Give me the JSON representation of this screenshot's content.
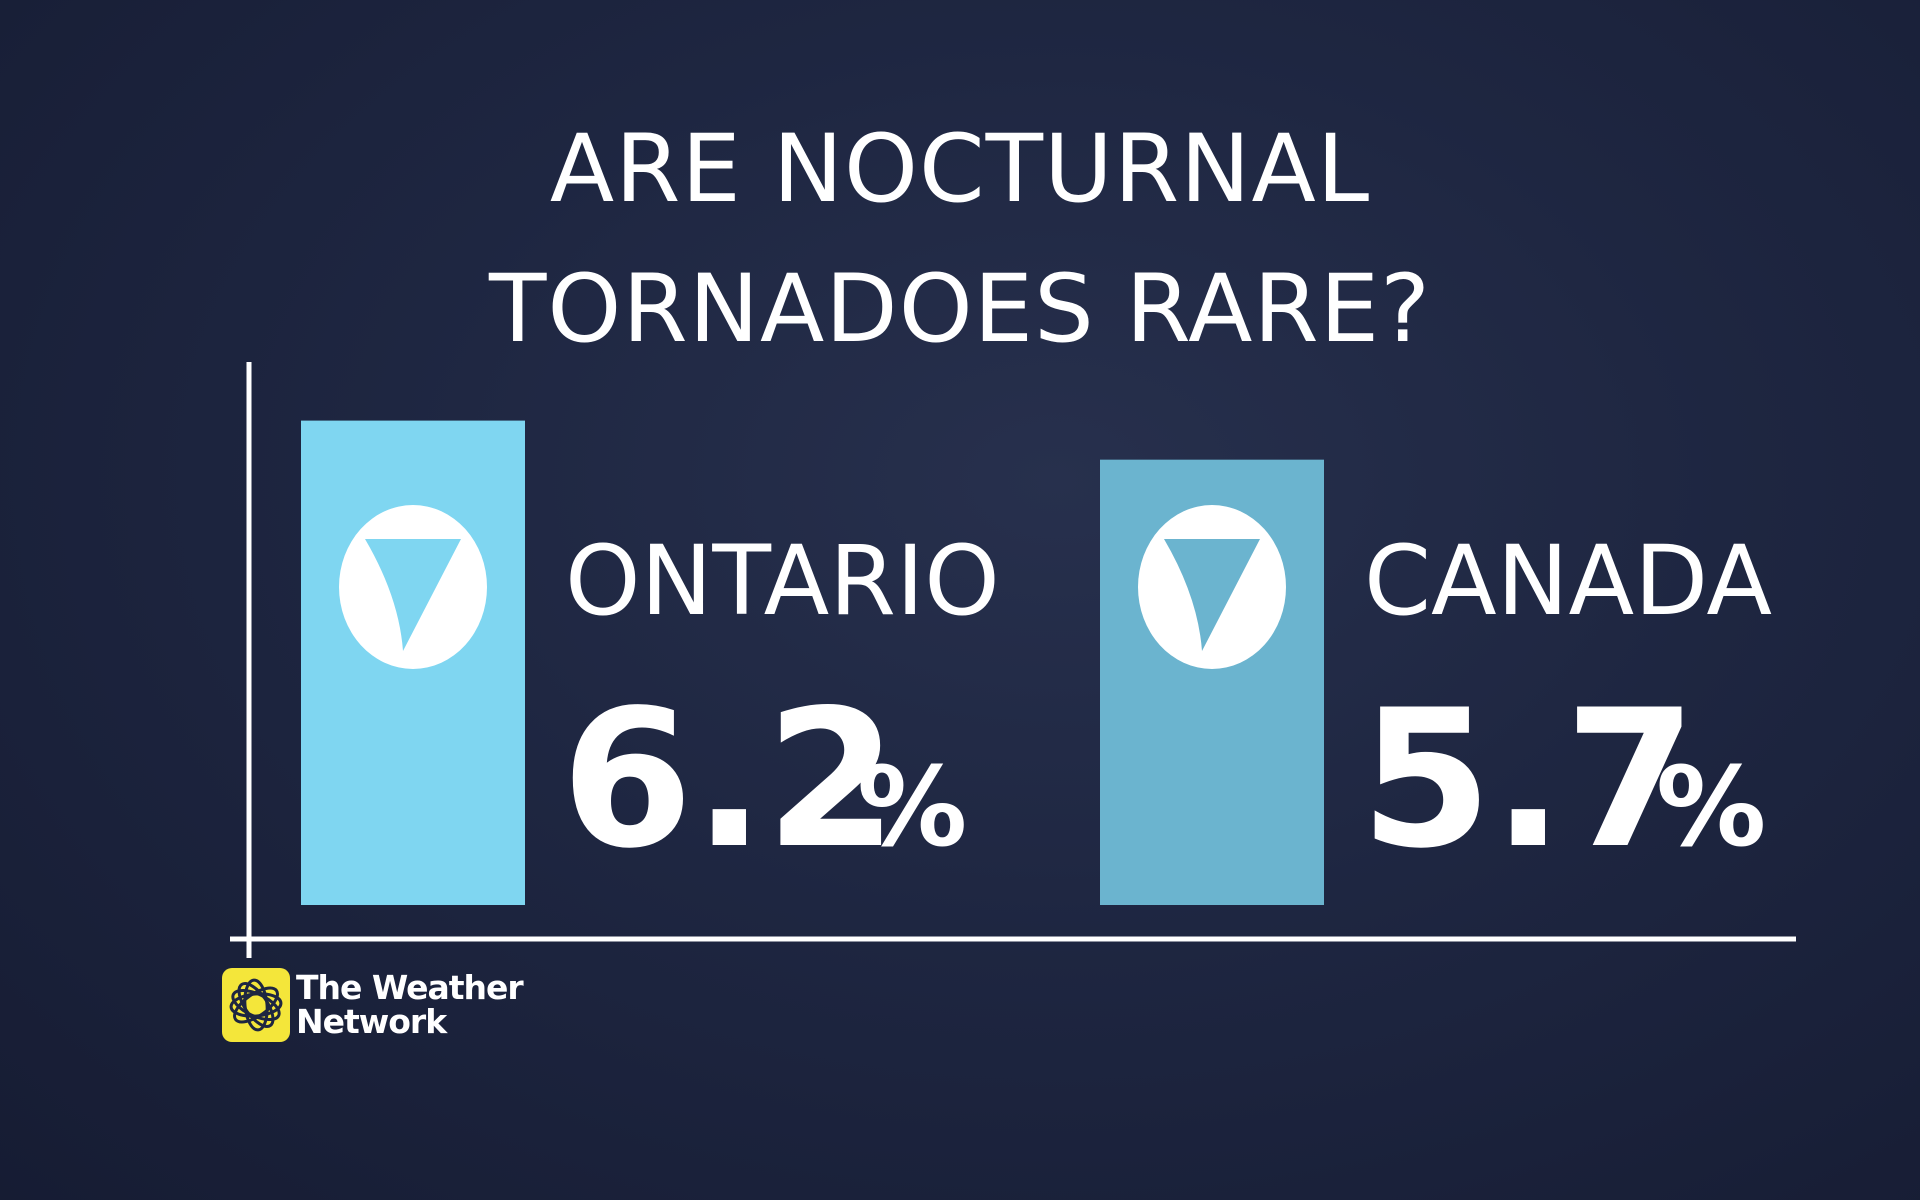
{
  "chart_data": {
    "type": "bar",
    "title_lines": [
      "ARE NOCTURNAL",
      "TORNADOES RARE?"
    ],
    "categories": [
      "ONTARIO",
      "CANADA"
    ],
    "values": [
      6.2,
      5.7
    ],
    "value_labels": [
      "6.2",
      "5.7"
    ],
    "unit": "%",
    "ylim": [
      0,
      6.95
    ],
    "grid": false,
    "legend": "none"
  },
  "colors": {
    "background": "#1e2641",
    "bar_primary": "#7fd6f1",
    "bar_secondary": "#6bb4cf",
    "axis": "#ffffff",
    "logo_yellow": "#f4e63a"
  },
  "icons": {
    "bar_badge": "tornado-funnel-icon",
    "brand": "weather-network-logo-icon"
  },
  "branding": {
    "line1": "The Weather",
    "line2": "Network"
  }
}
